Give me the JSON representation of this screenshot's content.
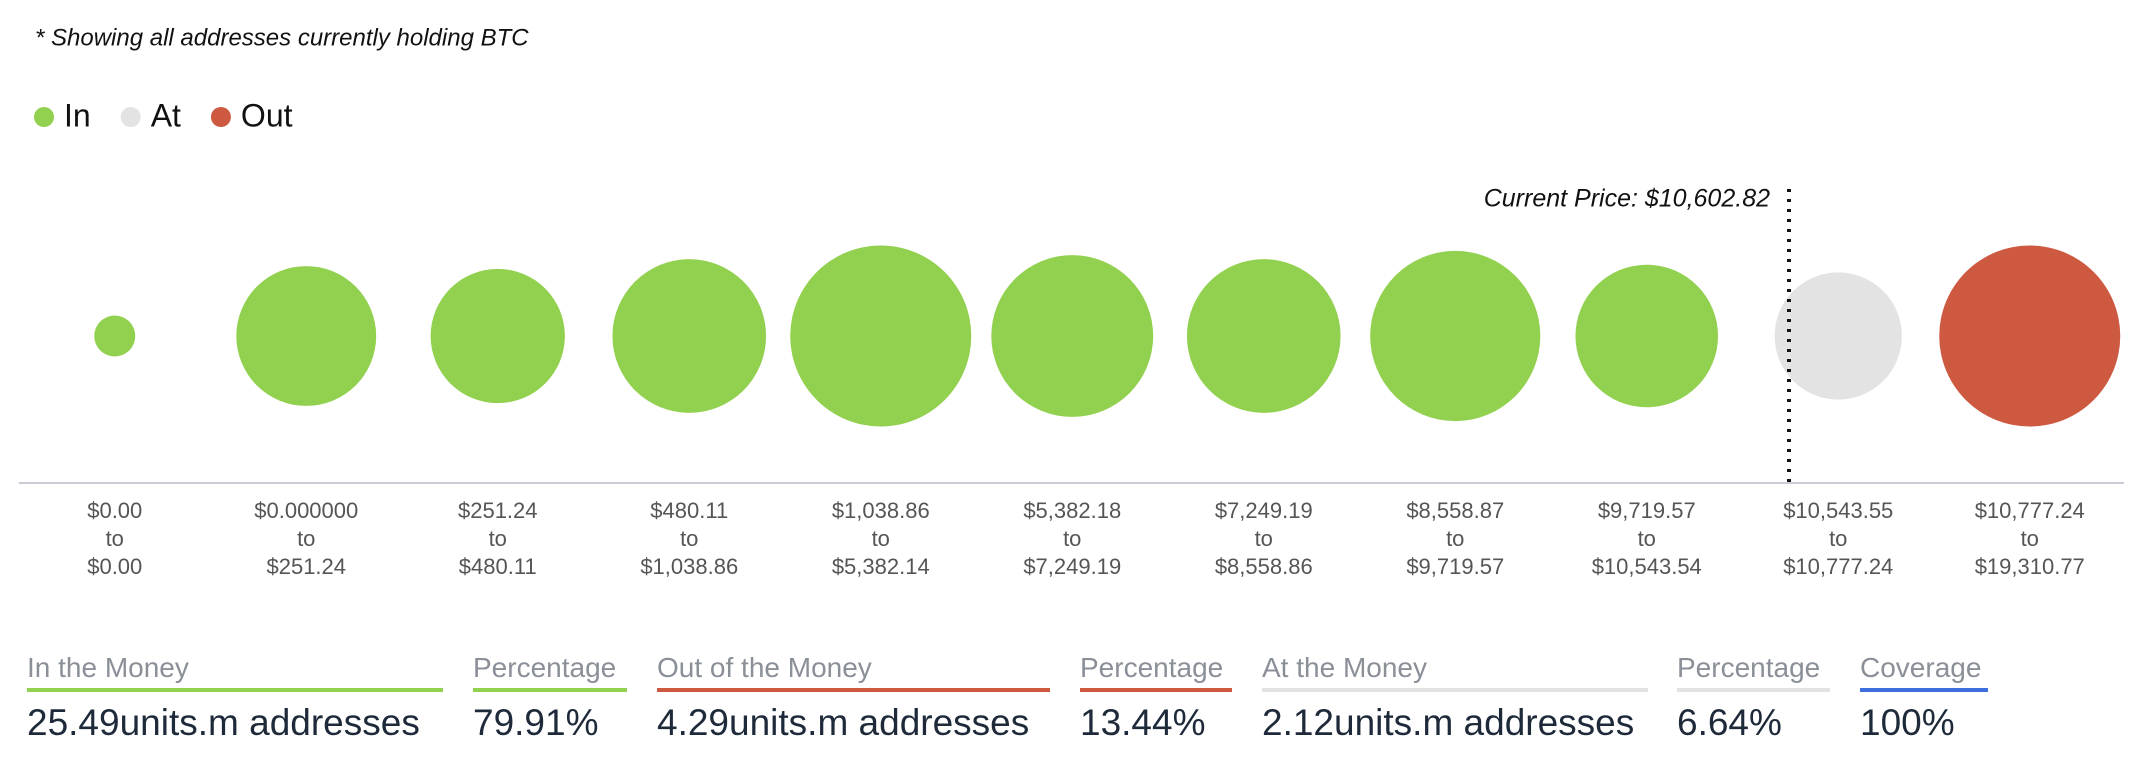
{
  "chart_data": {
    "type": "bubble",
    "subtitle": "* Showing all addresses currently holding BTC",
    "annotation": "Current Price: $10,602.82",
    "range_joiner": "to",
    "ranges": [
      {
        "from": "$0.00",
        "to": "$0.00"
      },
      {
        "from": "$0.000000",
        "to": "$251.24"
      },
      {
        "from": "$251.24",
        "to": "$480.11"
      },
      {
        "from": "$480.11",
        "to": "$1,038.86"
      },
      {
        "from": "$1,038.86",
        "to": "$5,382.14"
      },
      {
        "from": "$5,382.18",
        "to": "$7,249.19"
      },
      {
        "from": "$7,249.19",
        "to": "$8,558.86"
      },
      {
        "from": "$8,558.87",
        "to": "$9,719.57"
      },
      {
        "from": "$9,719.57",
        "to": "$10,543.54"
      },
      {
        "from": "$10,543.55",
        "to": "$10,777.24"
      },
      {
        "from": "$10,777.24",
        "to": "$19,310.77"
      }
    ],
    "series": [
      {
        "name": "In",
        "color": "#92d14f",
        "values": [
          0.22,
          2.56,
          2.36,
          3.09,
          4.29,
          3.43,
          3.09,
          3.79,
          2.66,
          null,
          null
        ]
      },
      {
        "name": "At",
        "color": "#e3e3e3",
        "values": [
          null,
          null,
          null,
          null,
          null,
          null,
          null,
          null,
          null,
          2.12,
          null
        ]
      },
      {
        "name": "Out",
        "color": "#cd5a40",
        "values": [
          null,
          null,
          null,
          null,
          null,
          null,
          null,
          null,
          null,
          null,
          4.29
        ]
      }
    ]
  },
  "summary": [
    {
      "label": "In the Money",
      "value": "25.49units.m addresses",
      "color": "#92d14f"
    },
    {
      "label": "Percentage",
      "value": "79.91%",
      "color": "#92d14f"
    },
    {
      "label": "Out of the Money",
      "value": "4.29units.m addresses",
      "color": "#cd5a40"
    },
    {
      "label": "Percentage",
      "value": "13.44%",
      "color": "#cd5a40"
    },
    {
      "label": "At the Money",
      "value": "2.12units.m addresses",
      "color": "#e3e3e3"
    },
    {
      "label": "Percentage",
      "value": "6.64%",
      "color": "#e3e3e3"
    },
    {
      "label": "Coverage",
      "value": "100%",
      "color": "#3d6fdf"
    }
  ]
}
